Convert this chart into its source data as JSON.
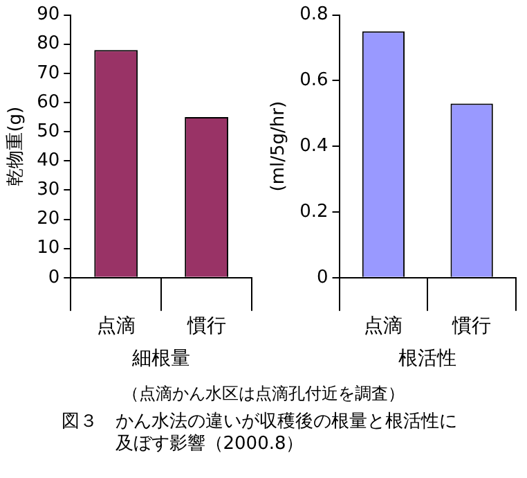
{
  "chart_data": [
    {
      "type": "bar",
      "categories": [
        "点滴",
        "慣行"
      ],
      "values": [
        78,
        55
      ],
      "color": "#993366",
      "ylim": [
        0,
        90
      ],
      "yticks": [
        0,
        10,
        20,
        30,
        40,
        50,
        60,
        70,
        80,
        90
      ],
      "ylabel": "乾物重(g)",
      "xlabel": "細根量",
      "grid": false,
      "legend": false,
      "annotations": [
        "（点滴かん水区は点滴孔付近を調査）",
        "図３　かん水法の違いが収穫後の根量と根活性に及ぼす影響（2000.8）"
      ]
    },
    {
      "type": "bar",
      "categories": [
        "点滴",
        "慣行"
      ],
      "values": [
        0.75,
        0.53
      ],
      "color": "#9999ff",
      "ylim": [
        0,
        0.8
      ],
      "yticks": [
        0,
        0.2,
        0.4,
        0.6,
        0.8
      ],
      "ylabel": "(ml/5g/hr)",
      "xlabel": "根活性",
      "grid": false,
      "legend": false
    }
  ]
}
